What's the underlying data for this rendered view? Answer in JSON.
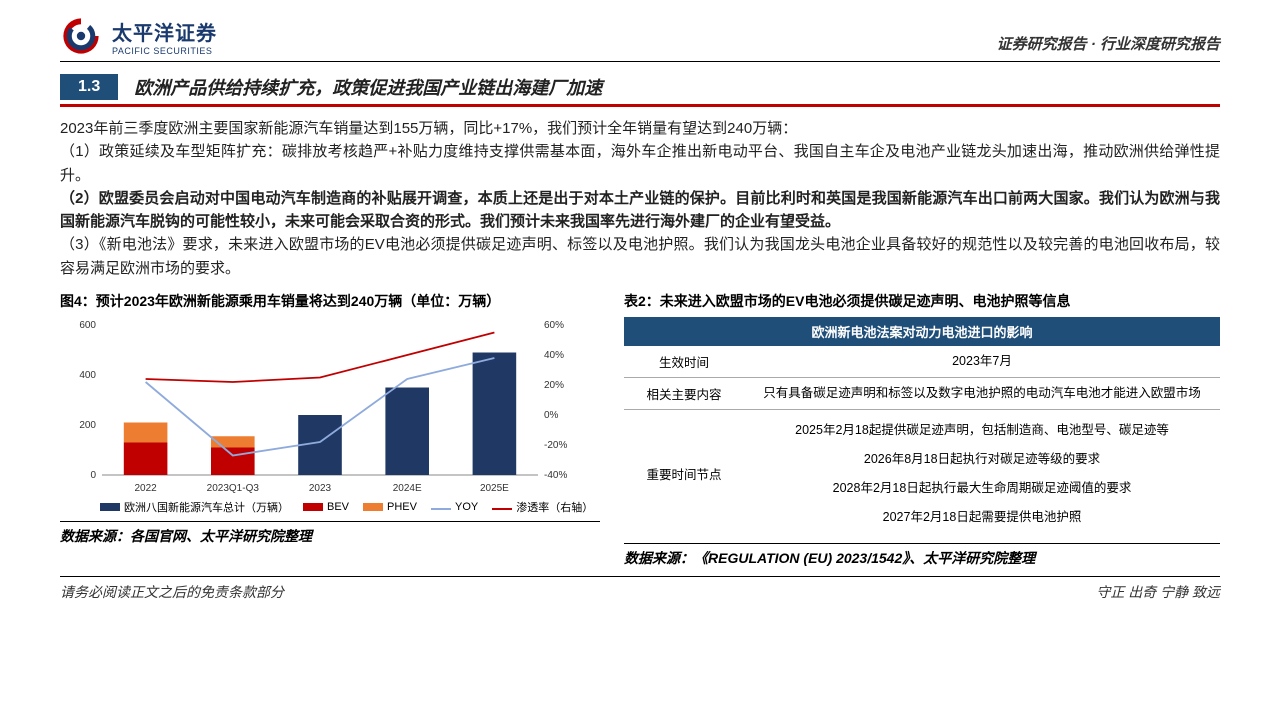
{
  "header": {
    "logo_cn": "太平洋证券",
    "logo_en": "PACIFIC SECURITIES",
    "right": "证券研究报告 · 行业深度研究报告"
  },
  "section": {
    "num": "1.3",
    "title": "欧洲产品供给持续扩充，政策促进我国产业链出海建厂加速"
  },
  "body": {
    "p0": "2023年前三季度欧洲主要国家新能源汽车销量达到155万辆，同比+17%，我们预计全年销量有望达到240万辆：",
    "p1": "（1）政策延续及车型矩阵扩充：碳排放考核趋严+补贴力度维持支撑供需基本面，海外车企推出新电动平台、我国自主车企及电池产业链龙头加速出海，推动欧洲供给弹性提升。",
    "p2": "（2）欧盟委员会启动对中国电动汽车制造商的补贴展开调查，本质上还是出于对本土产业链的保护。目前比利时和英国是我国新能源汽车出口前两大国家。我们认为欧洲与我国新能源汽车脱钩的可能性较小，未来可能会采取合资的形式。我们预计未来我国率先进行海外建厂的企业有望受益。",
    "p3": "（3）《新电池法》要求，未来进入欧盟市场的EV电池必须提供碳足迹声明、标签以及电池护照。我们认为我国龙头电池企业具备较好的规范性以及较完善的电池回收布局，较容易满足欧洲市场的要求。"
  },
  "figure4": {
    "title": "图4：预计2023年欧洲新能源乘用车销量将达到240万辆（单位：万辆）",
    "source": "数据来源：各国官网、太平洋研究院整理",
    "categories": [
      "2022",
      "2023Q1-Q3",
      "2023",
      "2024E",
      "2025E"
    ],
    "total_color": "#203864",
    "bev_color": "#c00000",
    "phev_color": "#ed7d31",
    "pen_color": "#c00000",
    "yoy_color": "#8faadc",
    "total": [
      0,
      0,
      240,
      350,
      490
    ],
    "bev": [
      130,
      110,
      0,
      0,
      0
    ],
    "phev": [
      80,
      45,
      0,
      0,
      0
    ],
    "penetration": [
      24,
      22,
      25,
      40,
      55
    ],
    "yoy": [
      22,
      -27,
      -18,
      24,
      38
    ],
    "y_left": {
      "min": 0,
      "max": 600,
      "step": 200
    },
    "y_right": {
      "min": -40,
      "max": 60,
      "step": 20
    },
    "legend": {
      "total": "欧洲八国新能源汽车总计（万辆）",
      "bev": "BEV",
      "phev": "PHEV",
      "yoy": "YOY",
      "pen": "渗透率（右轴）"
    }
  },
  "table2": {
    "title": "表2：未来进入欧盟市场的EV电池必须提供碳足迹声明、电池护照等信息",
    "header": "欧洲新电池法案对动力电池进口的影响",
    "row1": {
      "l": "生效时间",
      "r": "2023年7月"
    },
    "row2": {
      "l": "相关主要内容",
      "r": "只有具备碳足迹声明和标签以及数字电池护照的电动汽车电池才能进入欧盟市场"
    },
    "row3_l": "重要时间节点",
    "row3_1": "2025年2月18起提供碳足迹声明，包括制造商、电池型号、碳足迹等",
    "row3_2": "2026年8月18日起执行对碳足迹等级的要求",
    "row3_3": "2028年2月18日起执行最大生命周期碳足迹阈值的要求",
    "row3_4": "2027年2月18日起需要提供电池护照",
    "source": "数据来源：《REGULATION (EU) 2023/1542》、太平洋研究院整理"
  },
  "footer": {
    "left": "请务必阅读正文之后的免责条款部分",
    "right": "守正  出奇  宁静  致远"
  }
}
